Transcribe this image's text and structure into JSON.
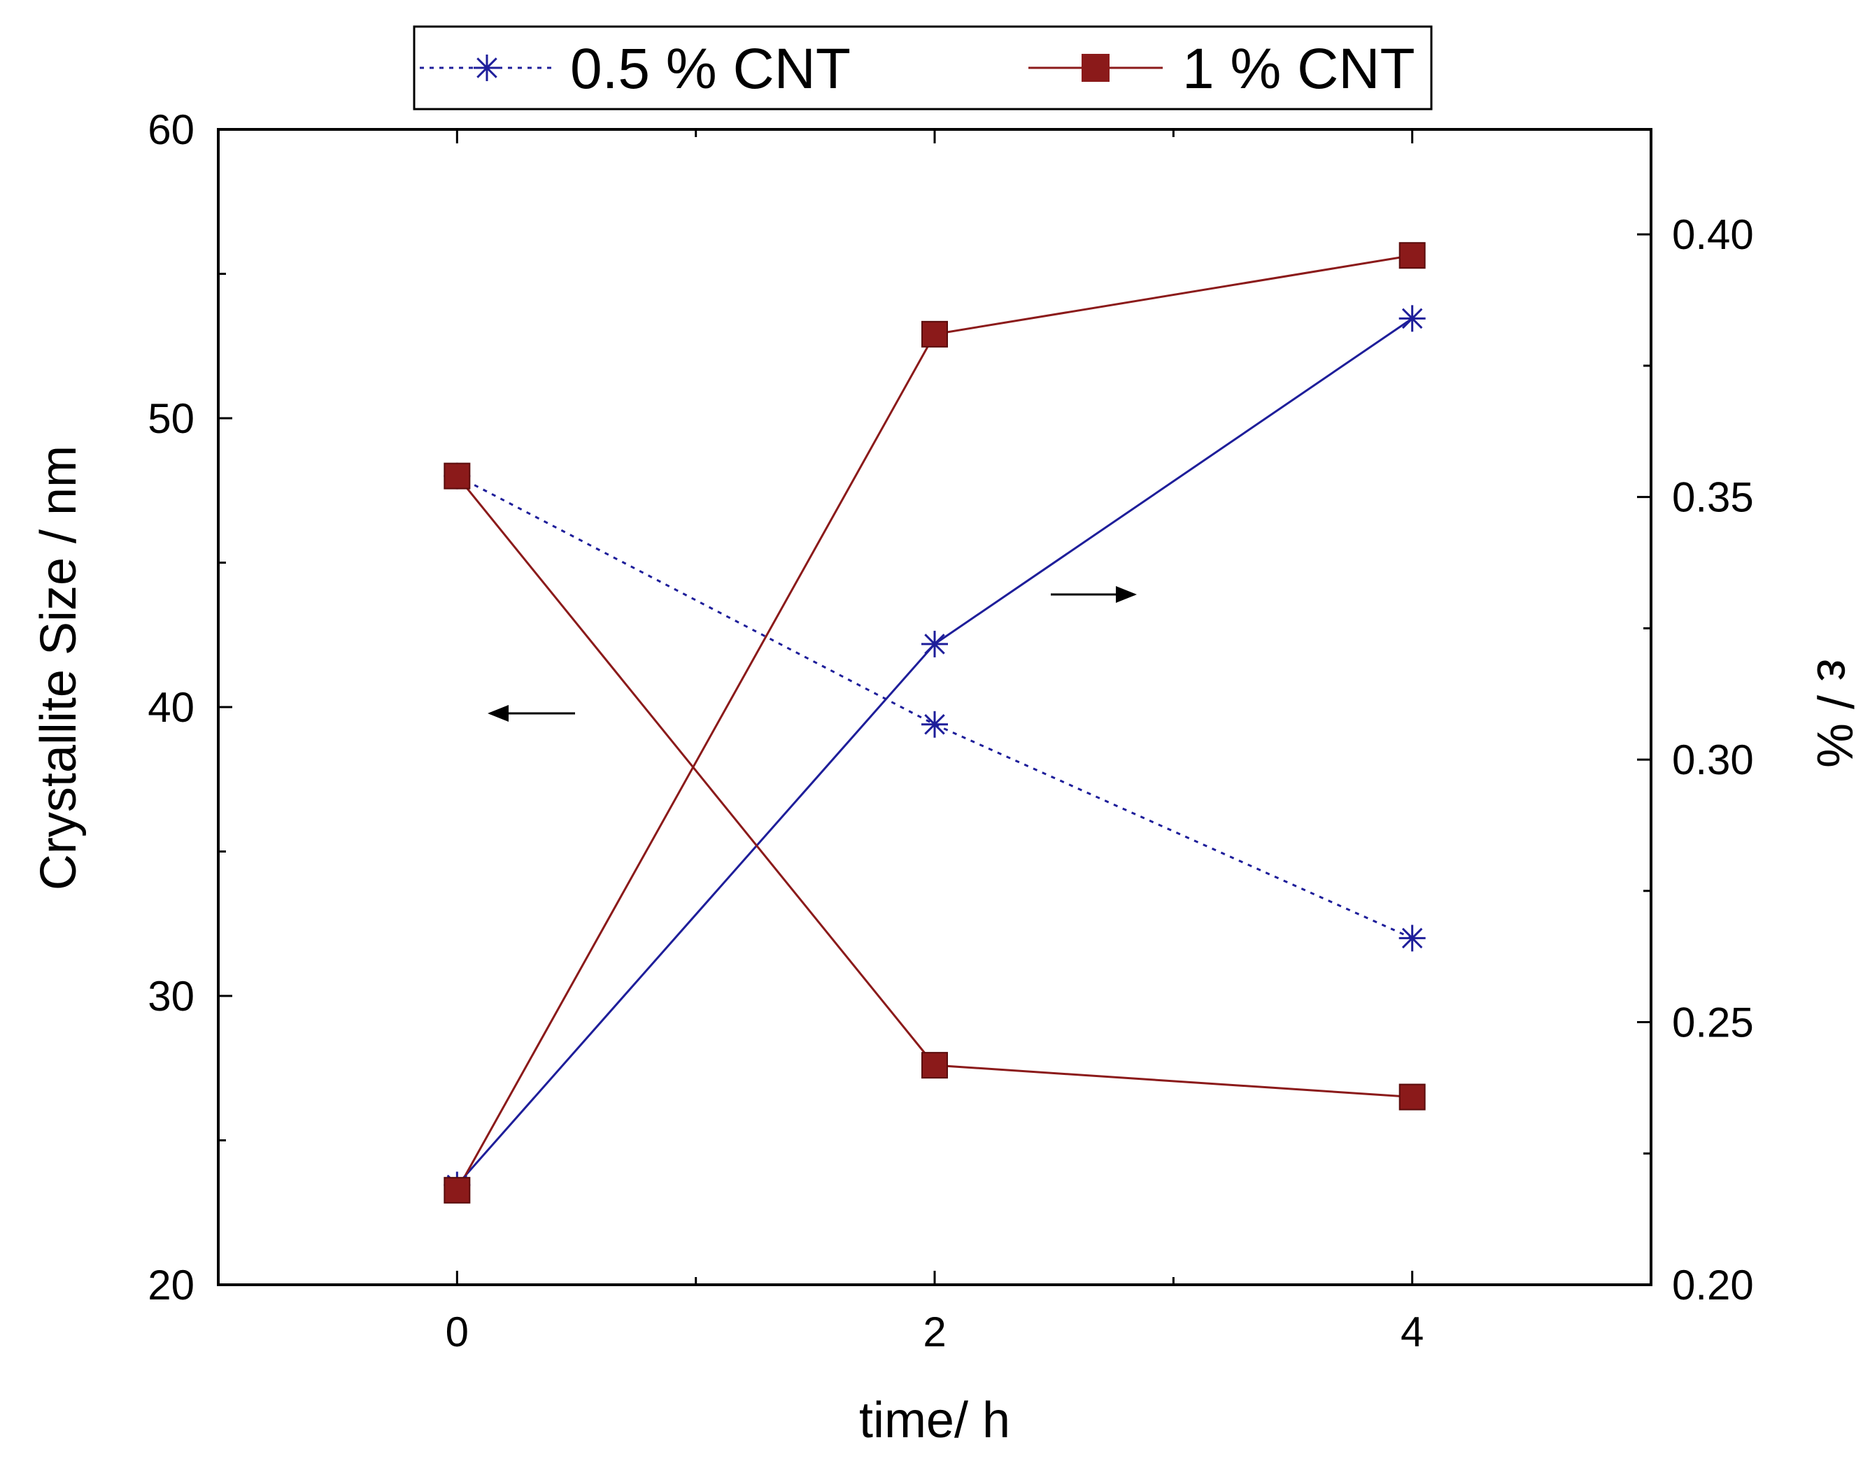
{
  "chart_data": {
    "type": "line",
    "x": [
      0,
      2,
      4
    ],
    "xlabel": "time/ h",
    "xlim": [
      -1,
      5
    ],
    "xticks": [
      "0",
      "2",
      "4"
    ],
    "ylabel_left": "Crystallite Size / nm",
    "ylim_left": [
      20,
      60
    ],
    "yticks_left": [
      "20",
      "30",
      "40",
      "50",
      "60"
    ],
    "ylabel_right": "ε / %",
    "ylim_right": [
      0.2,
      0.42
    ],
    "yticks_right": [
      "0.20",
      "0.25",
      "0.30",
      "0.35",
      "0.40"
    ],
    "legend": [
      "0.5 % CNT",
      "1 % CNT"
    ],
    "legend_position": "top",
    "series": [
      {
        "name": "0.5 % CNT",
        "measure": "crystallite size",
        "axis": "left",
        "marker": "asterisk",
        "line": "dotted",
        "color": "#1e1e9a",
        "values": [
          48.0,
          39.4,
          32.0
        ]
      },
      {
        "name": "0.5 % CNT",
        "measure": "strain",
        "axis": "right",
        "marker": "asterisk",
        "line": "solid",
        "color": "#1e1e9a",
        "values": [
          0.219,
          0.322,
          0.384
        ]
      },
      {
        "name": "1 % CNT",
        "measure": "crystallite size",
        "axis": "left",
        "marker": "square",
        "line": "solid",
        "color": "#8b1a1a",
        "values": [
          48.0,
          27.6,
          26.5
        ]
      },
      {
        "name": "1 % CNT",
        "measure": "strain",
        "axis": "right",
        "marker": "square",
        "line": "solid",
        "color": "#8b1a1a",
        "values": [
          0.218,
          0.381,
          0.396
        ]
      }
    ],
    "annotations": [
      {
        "type": "arrow",
        "direction": "left",
        "meaning": "left axis"
      },
      {
        "type": "arrow",
        "direction": "right",
        "meaning": "right axis"
      }
    ]
  }
}
